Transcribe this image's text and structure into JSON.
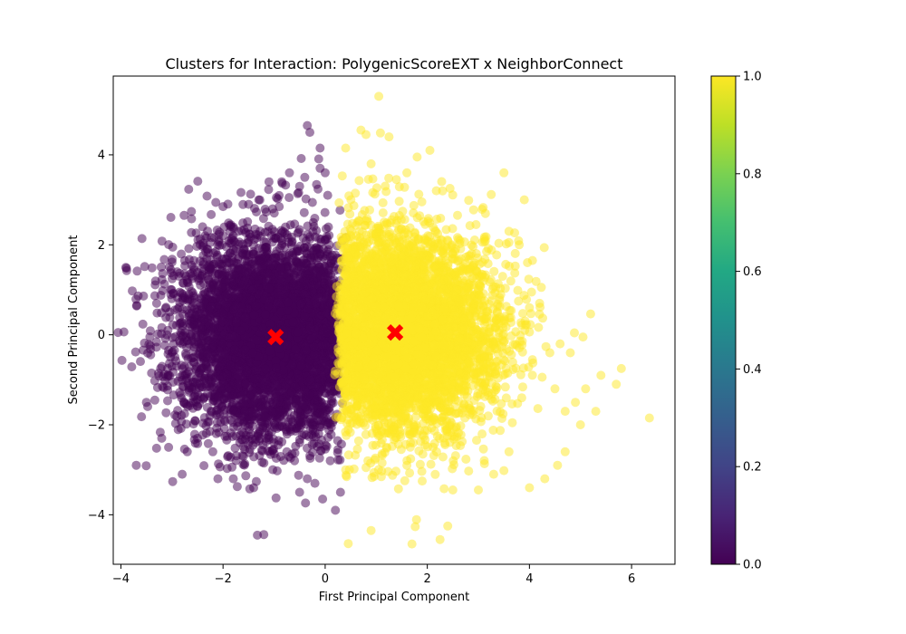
{
  "chart_data": {
    "type": "scatter",
    "title": "Clusters for Interaction: PolygenicScoreEXT x NeighborConnect",
    "xlabel": "First Principal Component",
    "ylabel": "Second Principal Component",
    "xlim": [
      -4.15,
      6.85
    ],
    "ylim": [
      -5.1,
      5.75
    ],
    "xticks": [
      -4,
      -2,
      0,
      2,
      4,
      6
    ],
    "xtick_labels": [
      "−4",
      "−2",
      "0",
      "2",
      "4",
      "6"
    ],
    "yticks": [
      -4,
      -2,
      0,
      2,
      4
    ],
    "ytick_labels": [
      "−4",
      "−2",
      "0",
      "2",
      "4"
    ],
    "grid": false,
    "colormap": "viridis",
    "colorbar": {
      "range": [
        0,
        1
      ],
      "ticks": [
        0.0,
        0.2,
        0.4,
        0.6,
        0.8,
        1.0
      ],
      "tick_labels": [
        "0.0",
        "0.2",
        "0.4",
        "0.6",
        "0.8",
        "1.0"
      ]
    },
    "series": [
      {
        "cluster_value": 0,
        "color": "#440154",
        "boundary_x": 0.3,
        "dense_points": 5000,
        "points": [
          [
            -3.7,
            -2.9
          ],
          [
            -3.5,
            -1.5
          ],
          [
            -3.4,
            -0.85
          ],
          [
            -3.3,
            0.7
          ],
          [
            -3.2,
            -2.3
          ],
          [
            -3.1,
            0.0
          ],
          [
            -3.0,
            -0.4
          ],
          [
            -2.9,
            1.4
          ],
          [
            -2.8,
            -3.1
          ],
          [
            -2.7,
            -2.6
          ],
          [
            -2.6,
            1.25
          ],
          [
            -2.5,
            -2.3
          ],
          [
            -2.4,
            2.4
          ],
          [
            -2.3,
            1.9
          ],
          [
            -2.2,
            -2.6
          ],
          [
            -2.1,
            -3.2
          ],
          [
            -2.0,
            2.85
          ],
          [
            -1.8,
            -3.2
          ],
          [
            -1.7,
            2.3
          ],
          [
            -1.6,
            -2.7
          ],
          [
            -1.5,
            2.9
          ],
          [
            -1.4,
            -3.4
          ],
          [
            -1.3,
            3.0
          ],
          [
            -1.2,
            -2.85
          ],
          [
            -1.1,
            3.4
          ],
          [
            -1.0,
            -2.4
          ],
          [
            -0.9,
            2.85
          ],
          [
            -0.85,
            3.4
          ],
          [
            -0.75,
            -2.6
          ],
          [
            -0.7,
            3.6
          ],
          [
            -0.6,
            -2.8
          ],
          [
            -0.5,
            3.3
          ],
          [
            -0.5,
            -3.5
          ],
          [
            -0.4,
            3.5
          ],
          [
            -0.35,
            -3.2
          ],
          [
            -0.35,
            4.65
          ],
          [
            -0.3,
            4.5
          ],
          [
            -0.2,
            -3.3
          ],
          [
            -0.1,
            4.15
          ],
          [
            -0.1,
            3.7
          ],
          [
            -0.05,
            -3.65
          ],
          [
            0.0,
            3.6
          ],
          [
            0.05,
            3.1
          ],
          [
            0.1,
            -2.8
          ],
          [
            0.2,
            -3.9
          ],
          [
            0.3,
            -3.5
          ],
          [
            0.25,
            -2.55
          ]
        ]
      },
      {
        "cluster_value": 1,
        "color": "#fde725",
        "boundary_x": 0.3,
        "dense_points": 5000,
        "points": [
          [
            1.05,
            5.3
          ],
          [
            0.4,
            4.15
          ],
          [
            0.7,
            4.55
          ],
          [
            0.8,
            4.45
          ],
          [
            1.25,
            4.4
          ],
          [
            2.05,
            4.1
          ],
          [
            1.8,
            3.95
          ],
          [
            1.6,
            3.6
          ],
          [
            0.9,
            3.8
          ],
          [
            3.5,
            3.6
          ],
          [
            2.3,
            3.2
          ],
          [
            3.9,
            3.0
          ],
          [
            3.6,
            2.3
          ],
          [
            3.8,
            2.0
          ],
          [
            4.0,
            0.6
          ],
          [
            4.2,
            0.7
          ],
          [
            4.4,
            -0.4
          ],
          [
            4.5,
            -1.2
          ],
          [
            4.6,
            -0.2
          ],
          [
            4.7,
            -1.7
          ],
          [
            4.8,
            -0.4
          ],
          [
            4.9,
            -1.5
          ],
          [
            5.0,
            -2.0
          ],
          [
            5.05,
            -0.05
          ],
          [
            5.1,
            -1.2
          ],
          [
            5.3,
            -1.7
          ],
          [
            5.4,
            -0.9
          ],
          [
            5.7,
            -1.1
          ],
          [
            5.8,
            -0.75
          ],
          [
            6.35,
            -1.85
          ],
          [
            4.3,
            -3.2
          ],
          [
            4.0,
            -3.4
          ],
          [
            3.6,
            -2.6
          ],
          [
            3.3,
            -3.1
          ],
          [
            3.0,
            -3.45
          ],
          [
            2.5,
            -3.45
          ],
          [
            2.4,
            -4.25
          ],
          [
            2.25,
            -4.55
          ],
          [
            1.7,
            -4.65
          ],
          [
            0.9,
            -4.35
          ],
          [
            1.9,
            -3.25
          ],
          [
            1.6,
            -2.9
          ],
          [
            0.4,
            -3.0
          ],
          [
            0.8,
            -2.95
          ],
          [
            1.2,
            -2.5
          ],
          [
            4.7,
            -2.6
          ],
          [
            4.55,
            -2.9
          ]
        ]
      }
    ],
    "centroids": {
      "color": "#ff0000",
      "marker": "X",
      "points": [
        [
          -0.97,
          -0.05
        ],
        [
          1.37,
          0.05
        ]
      ]
    }
  }
}
